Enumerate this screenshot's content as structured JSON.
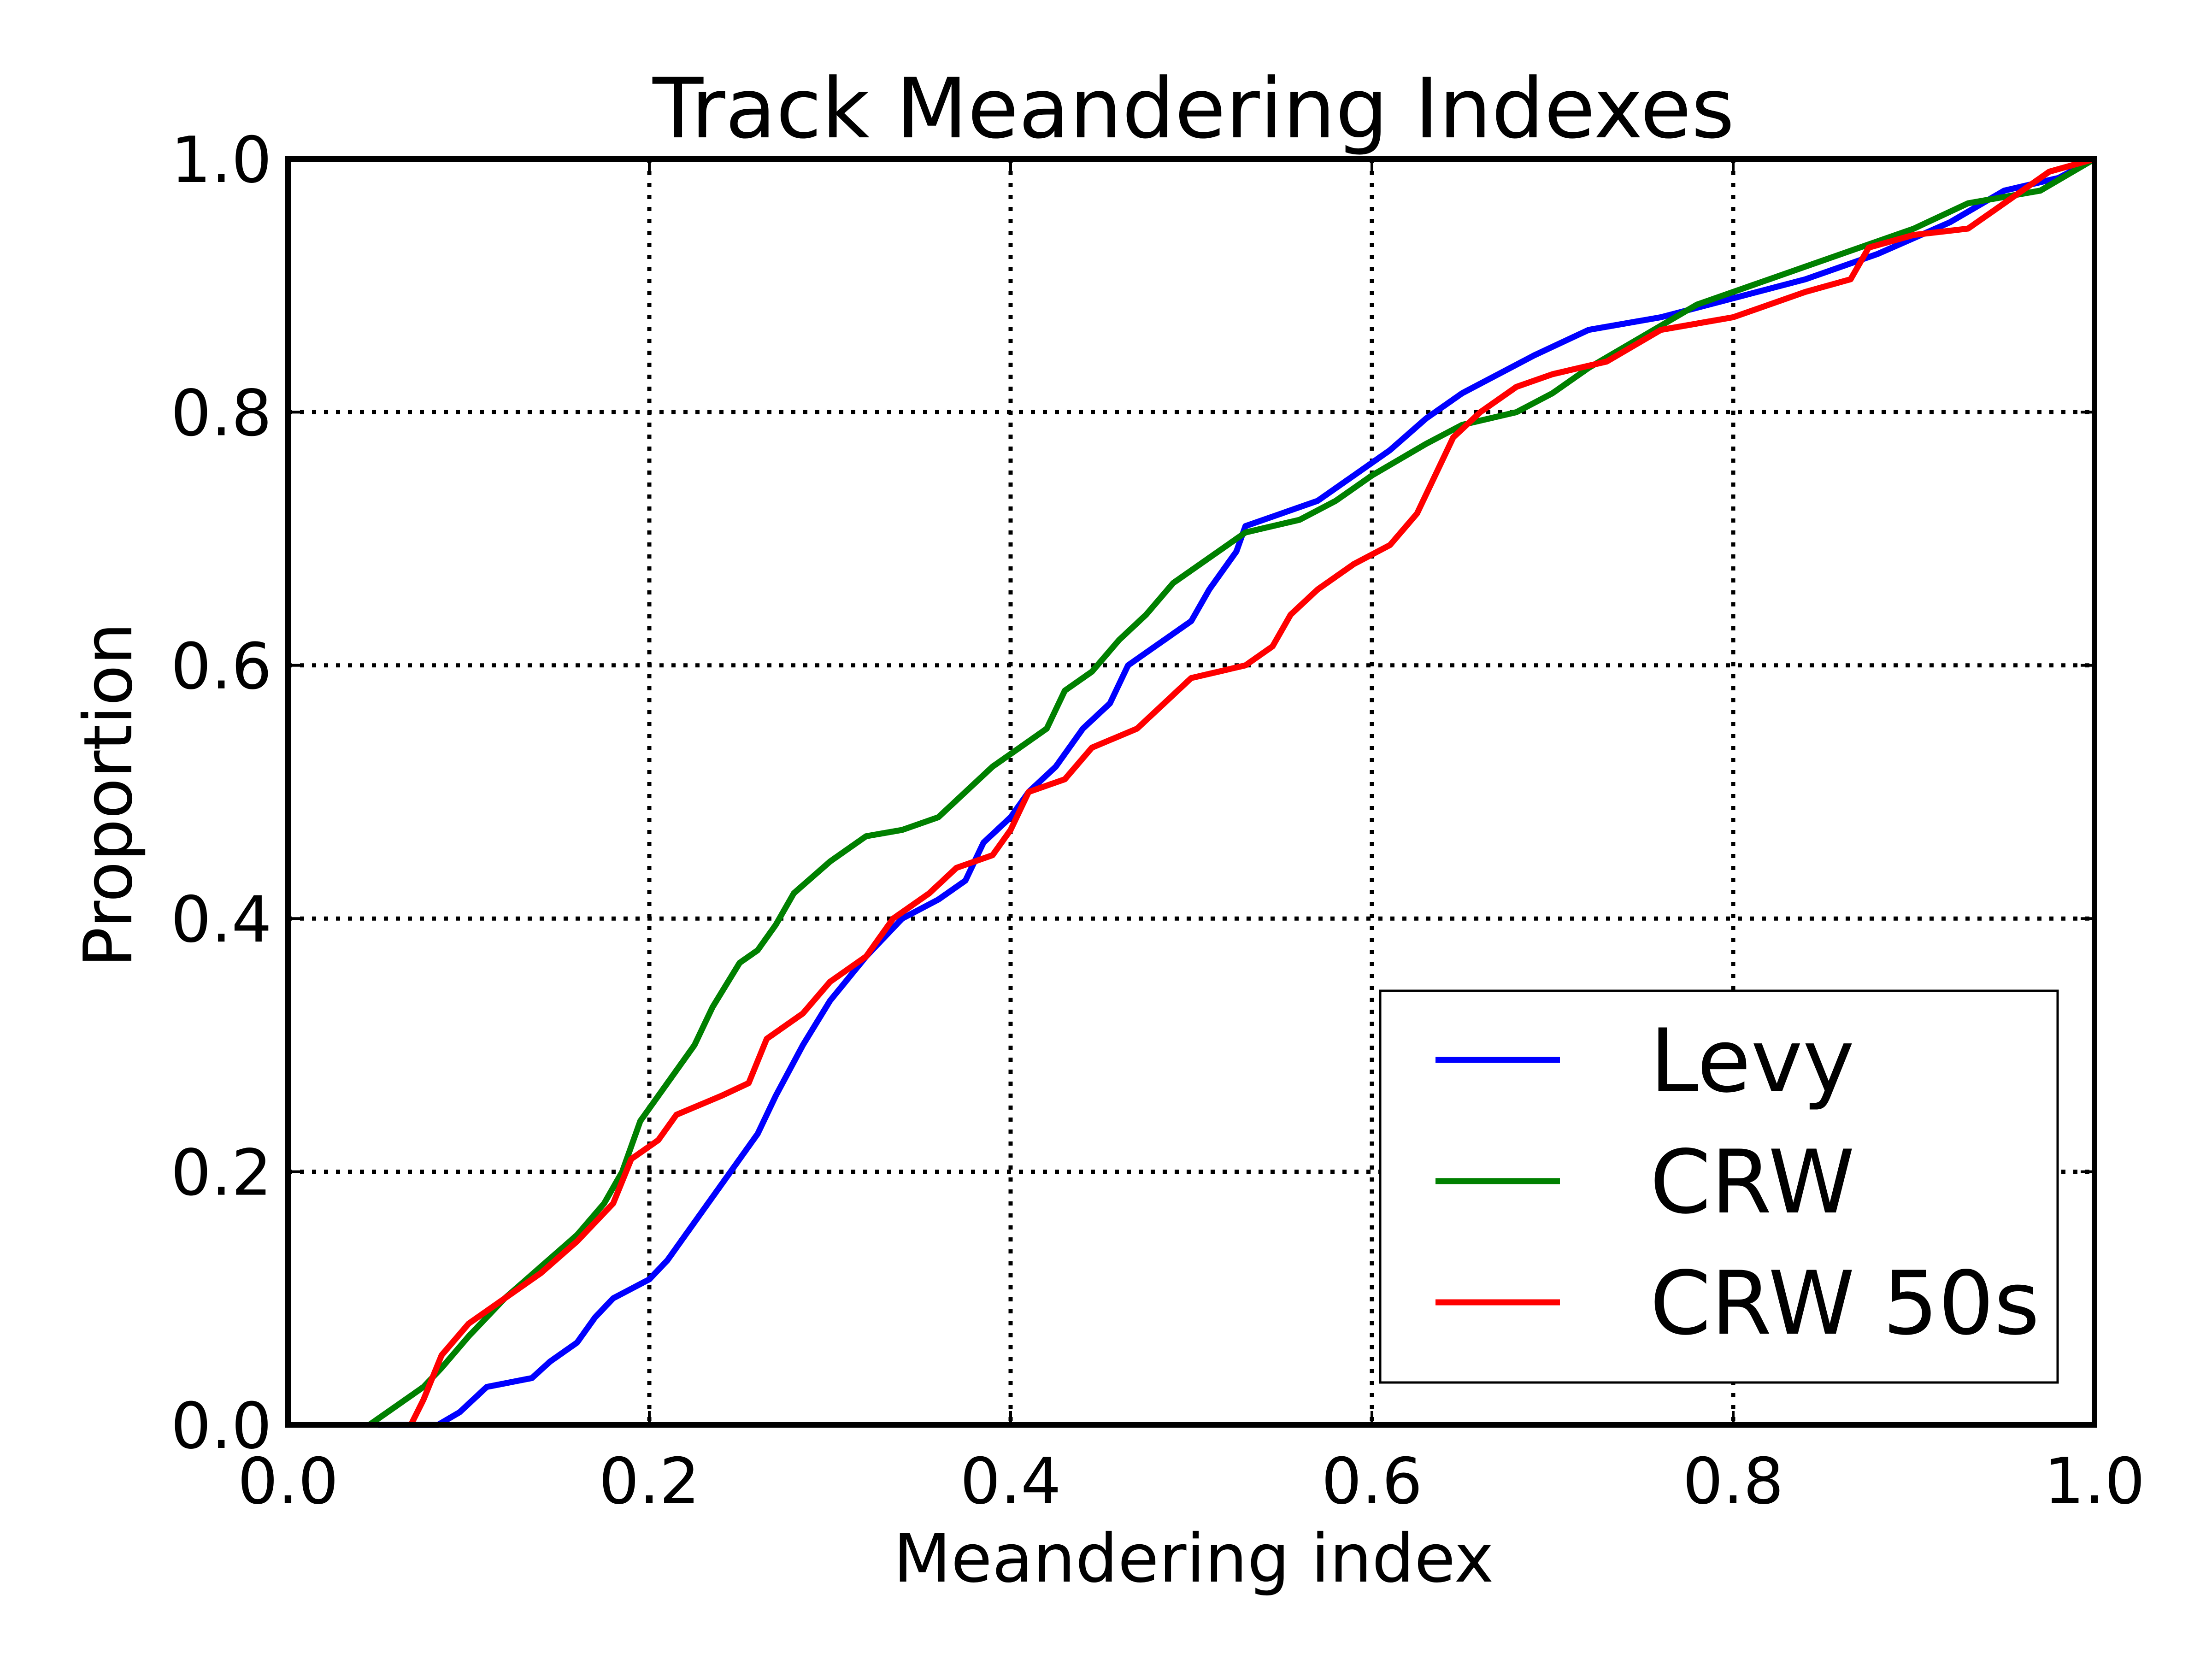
{
  "chart_data": {
    "type": "line",
    "title": "Track Meandering Indexes",
    "xlabel": "Meandering index",
    "ylabel": "Proportion",
    "xlim": [
      0.0,
      1.0
    ],
    "ylim": [
      0.0,
      1.0
    ],
    "x_ticks": [
      "0.0",
      "0.2",
      "0.4",
      "0.6",
      "0.8",
      "1.0"
    ],
    "y_ticks": [
      "0.0",
      "0.2",
      "0.4",
      "0.6",
      "0.8",
      "1.0"
    ],
    "grid": true,
    "legend_position": "lower right",
    "series": [
      {
        "name": "Levy",
        "color": "#0000ff",
        "points": [
          [
            0.05,
            0.0
          ],
          [
            0.083,
            0.0
          ],
          [
            0.095,
            0.01
          ],
          [
            0.11,
            0.03
          ],
          [
            0.135,
            0.037
          ],
          [
            0.145,
            0.05
          ],
          [
            0.16,
            0.065
          ],
          [
            0.17,
            0.085
          ],
          [
            0.18,
            0.1
          ],
          [
            0.2,
            0.115
          ],
          [
            0.21,
            0.13
          ],
          [
            0.22,
            0.15
          ],
          [
            0.235,
            0.18
          ],
          [
            0.25,
            0.21
          ],
          [
            0.26,
            0.23
          ],
          [
            0.27,
            0.26
          ],
          [
            0.285,
            0.3
          ],
          [
            0.3,
            0.335
          ],
          [
            0.32,
            0.37
          ],
          [
            0.34,
            0.4
          ],
          [
            0.36,
            0.415
          ],
          [
            0.375,
            0.43
          ],
          [
            0.385,
            0.46
          ],
          [
            0.4,
            0.48
          ],
          [
            0.41,
            0.5
          ],
          [
            0.425,
            0.52
          ],
          [
            0.44,
            0.55
          ],
          [
            0.455,
            0.57
          ],
          [
            0.465,
            0.6
          ],
          [
            0.48,
            0.615
          ],
          [
            0.5,
            0.635
          ],
          [
            0.51,
            0.66
          ],
          [
            0.525,
            0.69
          ],
          [
            0.53,
            0.71
          ],
          [
            0.55,
            0.72
          ],
          [
            0.57,
            0.73
          ],
          [
            0.59,
            0.75
          ],
          [
            0.61,
            0.77
          ],
          [
            0.63,
            0.795
          ],
          [
            0.65,
            0.815
          ],
          [
            0.67,
            0.83
          ],
          [
            0.69,
            0.845
          ],
          [
            0.72,
            0.865
          ],
          [
            0.76,
            0.875
          ],
          [
            0.8,
            0.89
          ],
          [
            0.84,
            0.905
          ],
          [
            0.88,
            0.925
          ],
          [
            0.92,
            0.95
          ],
          [
            0.95,
            0.975
          ],
          [
            0.98,
            0.985
          ],
          [
            1.0,
            1.0
          ]
        ]
      },
      {
        "name": "CRW",
        "color": "#008000",
        "points": [
          [
            0.045,
            0.0
          ],
          [
            0.055,
            0.01
          ],
          [
            0.065,
            0.02
          ],
          [
            0.075,
            0.03
          ],
          [
            0.085,
            0.045
          ],
          [
            0.1,
            0.07
          ],
          [
            0.12,
            0.1
          ],
          [
            0.14,
            0.125
          ],
          [
            0.16,
            0.15
          ],
          [
            0.175,
            0.175
          ],
          [
            0.185,
            0.2
          ],
          [
            0.195,
            0.24
          ],
          [
            0.21,
            0.27
          ],
          [
            0.225,
            0.3
          ],
          [
            0.235,
            0.33
          ],
          [
            0.25,
            0.365
          ],
          [
            0.26,
            0.375
          ],
          [
            0.27,
            0.395
          ],
          [
            0.28,
            0.42
          ],
          [
            0.3,
            0.445
          ],
          [
            0.32,
            0.465
          ],
          [
            0.34,
            0.47
          ],
          [
            0.36,
            0.48
          ],
          [
            0.375,
            0.5
          ],
          [
            0.39,
            0.52
          ],
          [
            0.405,
            0.535
          ],
          [
            0.42,
            0.55
          ],
          [
            0.43,
            0.58
          ],
          [
            0.445,
            0.595
          ],
          [
            0.46,
            0.62
          ],
          [
            0.475,
            0.64
          ],
          [
            0.49,
            0.665
          ],
          [
            0.51,
            0.685
          ],
          [
            0.53,
            0.705
          ],
          [
            0.56,
            0.715
          ],
          [
            0.58,
            0.73
          ],
          [
            0.6,
            0.75
          ],
          [
            0.63,
            0.775
          ],
          [
            0.65,
            0.79
          ],
          [
            0.68,
            0.8
          ],
          [
            0.7,
            0.815
          ],
          [
            0.72,
            0.835
          ],
          [
            0.75,
            0.86
          ],
          [
            0.78,
            0.885
          ],
          [
            0.82,
            0.905
          ],
          [
            0.86,
            0.925
          ],
          [
            0.9,
            0.945
          ],
          [
            0.93,
            0.965
          ],
          [
            0.97,
            0.975
          ],
          [
            1.0,
            1.0
          ]
        ]
      },
      {
        "name": "CRW 50s",
        "color": "#ff0000",
        "points": [
          [
            0.068,
            0.0
          ],
          [
            0.075,
            0.02
          ],
          [
            0.085,
            0.055
          ],
          [
            0.1,
            0.08
          ],
          [
            0.12,
            0.1
          ],
          [
            0.14,
            0.12
          ],
          [
            0.16,
            0.145
          ],
          [
            0.18,
            0.175
          ],
          [
            0.19,
            0.21
          ],
          [
            0.205,
            0.225
          ],
          [
            0.215,
            0.245
          ],
          [
            0.24,
            0.26
          ],
          [
            0.255,
            0.27
          ],
          [
            0.265,
            0.305
          ],
          [
            0.285,
            0.325
          ],
          [
            0.3,
            0.35
          ],
          [
            0.32,
            0.37
          ],
          [
            0.335,
            0.4
          ],
          [
            0.355,
            0.42
          ],
          [
            0.37,
            0.44
          ],
          [
            0.39,
            0.45
          ],
          [
            0.4,
            0.47
          ],
          [
            0.41,
            0.5
          ],
          [
            0.43,
            0.51
          ],
          [
            0.445,
            0.535
          ],
          [
            0.47,
            0.55
          ],
          [
            0.485,
            0.57
          ],
          [
            0.5,
            0.59
          ],
          [
            0.53,
            0.6
          ],
          [
            0.545,
            0.615
          ],
          [
            0.555,
            0.64
          ],
          [
            0.57,
            0.66
          ],
          [
            0.59,
            0.68
          ],
          [
            0.61,
            0.695
          ],
          [
            0.625,
            0.72
          ],
          [
            0.635,
            0.75
          ],
          [
            0.645,
            0.78
          ],
          [
            0.66,
            0.8
          ],
          [
            0.68,
            0.82
          ],
          [
            0.7,
            0.83
          ],
          [
            0.73,
            0.84
          ],
          [
            0.76,
            0.865
          ],
          [
            0.8,
            0.875
          ],
          [
            0.84,
            0.895
          ],
          [
            0.865,
            0.905
          ],
          [
            0.875,
            0.93
          ],
          [
            0.9,
            0.94
          ],
          [
            0.93,
            0.945
          ],
          [
            0.96,
            0.975
          ],
          [
            0.975,
            0.99
          ],
          [
            1.0,
            1.0
          ]
        ]
      }
    ]
  }
}
